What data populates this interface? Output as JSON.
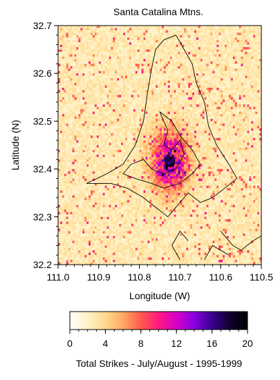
{
  "chart_data": {
    "type": "heatmap",
    "title": "Santa Catalina Mtns.",
    "xlabel": "Longitude (W)",
    "ylabel": "Latitude (N)",
    "xlim": [
      111.0,
      110.5
    ],
    "ylim": [
      32.2,
      32.7
    ],
    "x_ticks": [
      "111.0",
      "110.9",
      "110.8",
      "110.7",
      "110.6",
      "110.5"
    ],
    "y_ticks": [
      "32.2",
      "32.3",
      "32.4",
      "32.5",
      "32.6",
      "32.7"
    ],
    "grid": false,
    "cell_size_deg": 0.005,
    "hotspot": {
      "lon": 110.725,
      "lat": 32.415,
      "peak_strikes": 20
    },
    "colorbar": {
      "label": "Total Strikes - July/August - 1995-1999",
      "range": [
        0,
        20
      ],
      "ticks": [
        "0",
        "4",
        "8",
        "12",
        "16",
        "20"
      ],
      "colors": [
        "#ffffff",
        "#fff2c8",
        "#ffd98c",
        "#ffa866",
        "#ff5a4a",
        "#ff1a80",
        "#d600c8",
        "#8a00e0",
        "#3a0090",
        "#120030",
        "#000000"
      ]
    },
    "contour_color": "#000000"
  }
}
